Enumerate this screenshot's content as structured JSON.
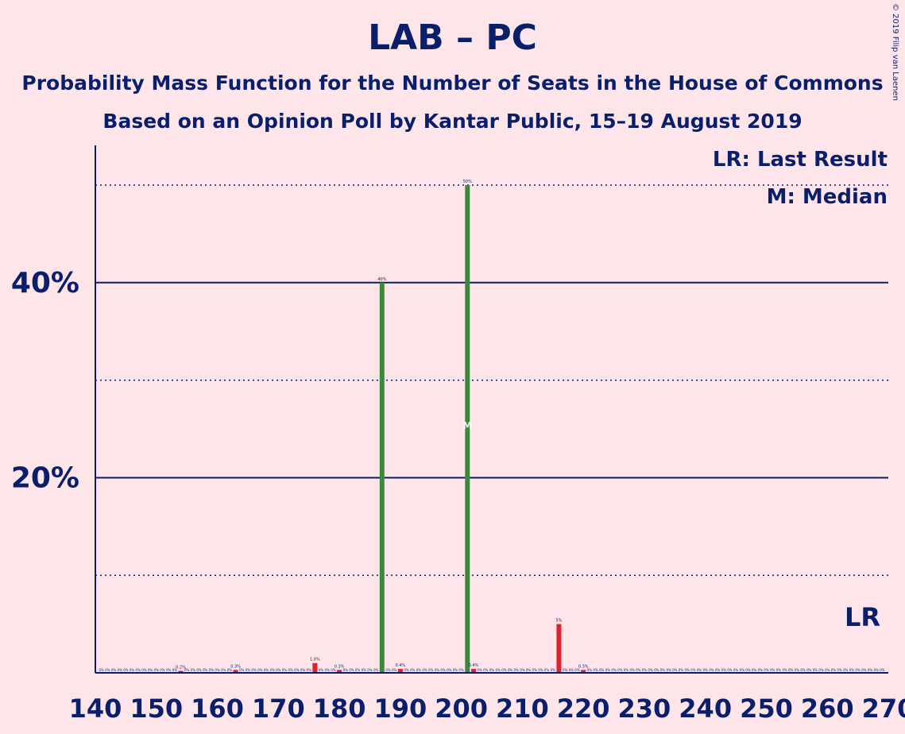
{
  "title": "LAB – PC",
  "subtitle_line1": "Probability Mass Function for the Number of Seats in the House of Commons",
  "subtitle_line2": "Based on an Opinion Poll by Kantar Public, 15–19 August 2019",
  "copyright": "© 2019 Filip van Laenen",
  "legend": {
    "last_result": "LR: Last Result",
    "median": "M: Median"
  },
  "markers": {
    "last_result_label": "LR",
    "median_label": "M"
  },
  "colors": {
    "background": "#fde5ea",
    "text": "#0a1f6b",
    "bar_red": "#e0202a",
    "bar_green": "#3a8a3a",
    "gridline": "#0a1f6b"
  },
  "chart_data": {
    "type": "bar",
    "xlabel": "",
    "ylabel": "",
    "xlim": [
      140,
      270
    ],
    "ylim": [
      0,
      54
    ],
    "x_ticks": [
      140,
      150,
      160,
      170,
      180,
      190,
      200,
      210,
      220,
      230,
      240,
      250,
      260,
      270
    ],
    "y_ticks_major": [
      20,
      40
    ],
    "y_tick_labels": [
      "20%",
      "40%"
    ],
    "y_gridlines_minor": [
      10,
      30,
      50
    ],
    "last_result": 266,
    "median": 201,
    "highlighted": [
      {
        "seats": 187,
        "value": 40,
        "label": "40%",
        "color": "green"
      },
      {
        "seats": 201,
        "value": 50,
        "label": "50%",
        "color": "green"
      }
    ],
    "bars": [
      {
        "seats": 154,
        "value": 0.2,
        "label": "0.2%"
      },
      {
        "seats": 163,
        "value": 0.3,
        "label": "0.3%"
      },
      {
        "seats": 176,
        "value": 1.0,
        "label": "1.0%"
      },
      {
        "seats": 180,
        "value": 0.3,
        "label": "0.3%"
      },
      {
        "seats": 190,
        "value": 0.4,
        "label": "0.4%"
      },
      {
        "seats": 202,
        "value": 0.4,
        "label": "0.4%"
      },
      {
        "seats": 216,
        "value": 5.0,
        "label": "5%"
      },
      {
        "seats": 220,
        "value": 0.3,
        "label": "0.3%"
      }
    ]
  }
}
